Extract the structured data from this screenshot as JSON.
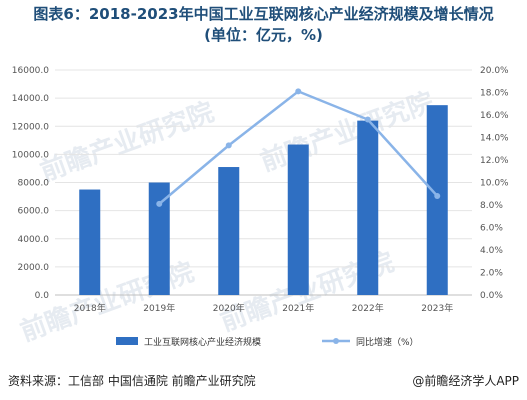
{
  "title_line1": "图表6：2018-2023年中国工业互联网核心产业经济规模及增长情况",
  "title_line2": "(单位：亿元，%)",
  "source": "资料来源：工信部 中国信通院 前瞻产业研究院",
  "brand": "@前瞻经济学人APP",
  "watermark": "前瞻产业研究院",
  "colors": {
    "bar": "#2f6fc2",
    "line": "#8ab4e8",
    "grid": "#e4e4e4"
  },
  "chart_data": {
    "type": "bar",
    "categories": [
      "2018年",
      "2019年",
      "2020年",
      "2021年",
      "2022年",
      "2023年"
    ],
    "series": [
      {
        "name": "工业互联网核心产业经济规模",
        "type": "bar",
        "axis": "left",
        "values": [
          7500,
          8000,
          9100,
          10700,
          12400,
          13500
        ]
      },
      {
        "name": "同比增速（%）",
        "type": "line",
        "axis": "right",
        "values": [
          null,
          8.1,
          13.3,
          18.1,
          15.6,
          8.8
        ]
      }
    ],
    "ylim_left": [
      0,
      16000
    ],
    "ylim_right": [
      0,
      20
    ],
    "yticks_left": [
      "0.0",
      "2000.0",
      "4000.0",
      "6000.0",
      "8000.0",
      "10000.0",
      "12000.0",
      "14000.0",
      "16000.0"
    ],
    "yticks_right": [
      "0.0%",
      "2.0%",
      "4.0%",
      "6.0%",
      "8.0%",
      "10.0%",
      "12.0%",
      "14.0%",
      "16.0%",
      "18.0%",
      "20.0%"
    ],
    "legend": [
      "工业互联网核心产业经济规模",
      "同比增速（%）"
    ],
    "legend_position": "bottom",
    "grid": true
  }
}
